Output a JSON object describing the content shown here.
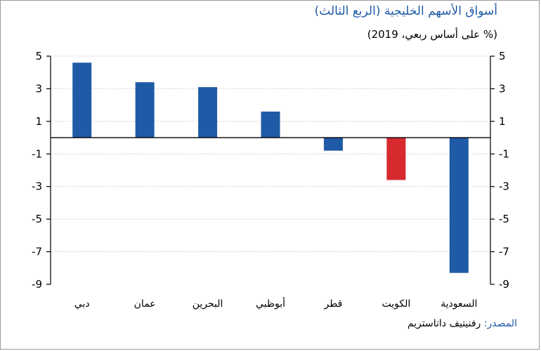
{
  "chart_data": {
    "type": "bar",
    "title": "أسواق الأسهم الخليجية (الربع الثالث)",
    "subtitle": "(% على أساس ربعي، 2019)",
    "categories": [
      "دبي",
      "عمان",
      "البحرين",
      "أبوظبي",
      "قطر",
      "الكويت",
      "السعودية"
    ],
    "values": [
      4.6,
      3.4,
      3.1,
      1.6,
      -0.8,
      -2.6,
      -8.3
    ],
    "bar_colors": [
      "#1f5aa6",
      "#1f5aa6",
      "#1f5aa6",
      "#1f5aa6",
      "#1f5aa6",
      "#d62a2f",
      "#1f5aa6"
    ],
    "ylim": [
      -9,
      5
    ],
    "yticks": [
      5,
      3,
      1,
      -1,
      -3,
      -5,
      -7,
      -9
    ],
    "ytick_labels": [
      "5",
      "3",
      "1",
      "-1",
      "-3",
      "-5",
      "-7",
      "-9"
    ],
    "grid": "horizontal dotted",
    "xlabel": "",
    "ylabel": ""
  },
  "source": {
    "label": "المصدر:",
    "text": " رفنيتيف داتاستريم"
  }
}
